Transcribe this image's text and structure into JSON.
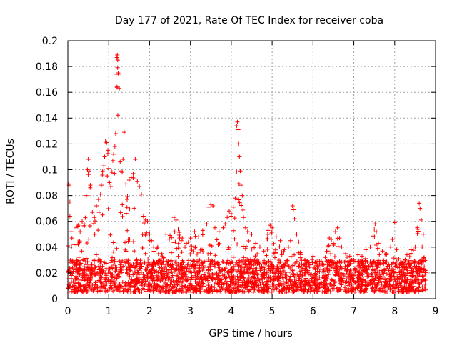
{
  "chart_data": {
    "type": "scatter",
    "title": "Day 177 of 2021, Rate Of TEC Index for receiver coba",
    "xlabel": "GPS time / hours",
    "ylabel": "ROTI / TECUs",
    "xlim": [
      0,
      9
    ],
    "ylim": [
      0,
      0.2
    ],
    "x_ticks": [
      0,
      1,
      2,
      3,
      4,
      5,
      6,
      7,
      8,
      9
    ],
    "x_tick_labels": [
      "0",
      "1",
      "2",
      "3",
      "4",
      "5",
      "6",
      "7",
      "8",
      "9"
    ],
    "y_ticks": [
      0,
      0.02,
      0.04,
      0.06,
      0.08,
      0.1,
      0.12,
      0.14,
      0.16,
      0.18,
      0.2
    ],
    "y_tick_labels": [
      "0",
      "0.02",
      "0.04",
      "0.06",
      "0.08",
      "0.1",
      "0.12",
      "0.14",
      "0.16",
      "0.18",
      "0.2"
    ],
    "grid": true,
    "marker": "+",
    "color": "#ff0000",
    "series": [
      {
        "name": "ROTI",
        "points": [
          [
            0.0,
            0.041
          ],
          [
            0.02,
            0.089
          ],
          [
            0.03,
            0.088
          ],
          [
            0.05,
            0.075
          ],
          [
            0.05,
            0.064
          ],
          [
            0.08,
            0.052
          ],
          [
            0.1,
            0.047
          ],
          [
            0.15,
            0.042
          ],
          [
            0.2,
            0.055
          ],
          [
            0.25,
            0.057
          ],
          [
            0.3,
            0.052
          ],
          [
            0.35,
            0.06
          ],
          [
            0.4,
            0.058
          ],
          [
            0.45,
            0.08
          ],
          [
            0.48,
            0.1
          ],
          [
            0.5,
            0.108
          ],
          [
            0.52,
            0.099
          ],
          [
            0.55,
            0.088
          ],
          [
            0.6,
            0.067
          ],
          [
            0.65,
            0.063
          ],
          [
            0.7,
            0.072
          ],
          [
            0.75,
            0.077
          ],
          [
            0.8,
            0.081
          ],
          [
            0.82,
            0.088
          ],
          [
            0.85,
            0.099
          ],
          [
            0.88,
            0.103
          ],
          [
            0.9,
            0.11
          ],
          [
            0.92,
            0.122
          ],
          [
            0.95,
            0.121
          ],
          [
            0.98,
            0.115
          ],
          [
            1.0,
            0.101
          ],
          [
            1.02,
            0.09
          ],
          [
            1.05,
            0.087
          ],
          [
            1.08,
            0.098
          ],
          [
            1.1,
            0.107
          ],
          [
            1.12,
            0.112
          ],
          [
            1.15,
            0.118
          ],
          [
            1.17,
            0.128
          ],
          [
            1.18,
            0.174
          ],
          [
            1.2,
            0.187
          ],
          [
            1.21,
            0.189
          ],
          [
            1.22,
            0.185
          ],
          [
            1.23,
            0.175
          ],
          [
            1.24,
            0.174
          ],
          [
            1.26,
            0.163
          ],
          [
            1.28,
            0.106
          ],
          [
            1.3,
            0.099
          ],
          [
            1.33,
            0.098
          ],
          [
            1.35,
            0.108
          ],
          [
            1.38,
            0.129
          ],
          [
            1.42,
            0.089
          ],
          [
            1.45,
            0.077
          ],
          [
            1.5,
            0.092
          ],
          [
            1.55,
            0.094
          ],
          [
            1.6,
            0.097
          ],
          [
            1.65,
            0.108
          ],
          [
            1.7,
            0.091
          ],
          [
            1.75,
            0.087
          ],
          [
            1.8,
            0.081
          ],
          [
            1.85,
            0.064
          ],
          [
            1.9,
            0.061
          ],
          [
            1.95,
            0.06
          ],
          [
            2.0,
            0.05
          ],
          [
            2.05,
            0.045
          ],
          [
            2.1,
            0.04
          ],
          [
            2.2,
            0.04
          ],
          [
            2.3,
            0.035
          ],
          [
            2.4,
            0.05
          ],
          [
            2.5,
            0.049
          ],
          [
            2.6,
            0.063
          ],
          [
            2.65,
            0.061
          ],
          [
            2.7,
            0.054
          ],
          [
            2.8,
            0.047
          ],
          [
            2.9,
            0.043
          ],
          [
            3.0,
            0.047
          ],
          [
            3.1,
            0.052
          ],
          [
            3.2,
            0.048
          ],
          [
            3.3,
            0.053
          ],
          [
            3.4,
            0.058
          ],
          [
            3.45,
            0.071
          ],
          [
            3.5,
            0.073
          ],
          [
            3.55,
            0.072
          ],
          [
            3.6,
            0.055
          ],
          [
            3.7,
            0.052
          ],
          [
            3.8,
            0.055
          ],
          [
            3.85,
            0.058
          ],
          [
            3.9,
            0.063
          ],
          [
            3.95,
            0.068
          ],
          [
            4.0,
            0.066
          ],
          [
            4.05,
            0.071
          ],
          [
            4.1,
            0.078
          ],
          [
            4.13,
            0.134
          ],
          [
            4.15,
            0.137
          ],
          [
            4.17,
            0.131
          ],
          [
            4.18,
            0.12
          ],
          [
            4.2,
            0.11
          ],
          [
            4.22,
            0.099
          ],
          [
            4.24,
            0.088
          ],
          [
            4.27,
            0.08
          ],
          [
            4.3,
            0.063
          ],
          [
            4.35,
            0.055
          ],
          [
            4.4,
            0.052
          ],
          [
            4.5,
            0.05
          ],
          [
            4.6,
            0.043
          ],
          [
            4.7,
            0.04
          ],
          [
            4.8,
            0.037
          ],
          [
            4.9,
            0.053
          ],
          [
            4.95,
            0.057
          ],
          [
            5.0,
            0.055
          ],
          [
            5.1,
            0.048
          ],
          [
            5.2,
            0.045
          ],
          [
            5.3,
            0.038
          ],
          [
            5.4,
            0.04
          ],
          [
            5.45,
            0.045
          ],
          [
            5.5,
            0.072
          ],
          [
            5.52,
            0.069
          ],
          [
            5.55,
            0.062
          ],
          [
            5.6,
            0.05
          ],
          [
            5.65,
            0.044
          ],
          [
            5.7,
            0.036
          ],
          [
            5.8,
            0.03
          ],
          [
            5.9,
            0.028
          ],
          [
            6.0,
            0.033
          ],
          [
            6.1,
            0.029
          ],
          [
            6.2,
            0.026
          ],
          [
            6.3,
            0.032
          ],
          [
            6.4,
            0.047
          ],
          [
            6.45,
            0.046
          ],
          [
            6.5,
            0.043
          ],
          [
            6.55,
            0.052
          ],
          [
            6.6,
            0.055
          ],
          [
            6.65,
            0.047
          ],
          [
            6.7,
            0.04
          ],
          [
            6.8,
            0.035
          ],
          [
            6.9,
            0.033
          ],
          [
            7.0,
            0.03
          ],
          [
            7.1,
            0.034
          ],
          [
            7.2,
            0.033
          ],
          [
            7.3,
            0.038
          ],
          [
            7.4,
            0.04
          ],
          [
            7.5,
            0.054
          ],
          [
            7.52,
            0.058
          ],
          [
            7.55,
            0.052
          ],
          [
            7.6,
            0.043
          ],
          [
            7.7,
            0.037
          ],
          [
            7.8,
            0.035
          ],
          [
            7.9,
            0.04
          ],
          [
            8.0,
            0.059
          ],
          [
            8.05,
            0.038
          ],
          [
            8.1,
            0.031
          ],
          [
            8.2,
            0.028
          ],
          [
            8.3,
            0.034
          ],
          [
            8.4,
            0.038
          ],
          [
            8.5,
            0.04
          ],
          [
            8.55,
            0.055
          ],
          [
            8.6,
            0.074
          ],
          [
            8.62,
            0.07
          ],
          [
            8.65,
            0.061
          ],
          [
            8.7,
            0.05
          ],
          [
            8.72,
            0.032
          ],
          [
            8.75,
            0.022
          ]
        ],
        "baseline_band": {
          "x_start": 0,
          "x_end": 8.78,
          "y_min": 0.005,
          "y_max": 0.03
        }
      }
    ]
  }
}
